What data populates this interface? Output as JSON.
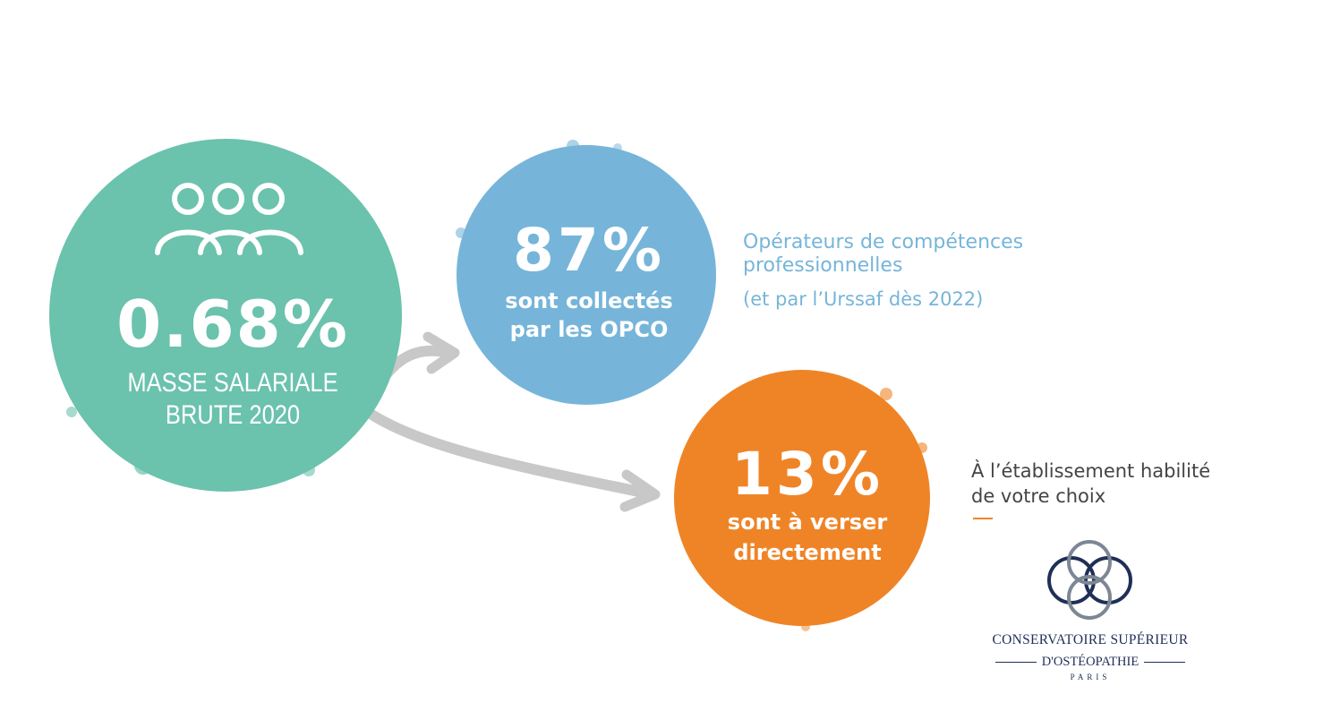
{
  "colors": {
    "green": "#6bc2ad",
    "blue": "#76b5d9",
    "orange": "#ef8427",
    "arrow": "#c8c8c8",
    "logo_navy": "#1f2f57",
    "logo_grey": "#7d8794"
  },
  "total": {
    "icon": "people-group-icon",
    "percent": "0.68%",
    "label_line1": "MASSE SALARIALE",
    "label_line2": "BRUTE 2020"
  },
  "opco": {
    "percent": "87%",
    "label_line1": "sont collectés",
    "label_line2": "par les OPCO",
    "description_line1": "Opérateurs de compétences",
    "description_line2": "professionnelles",
    "note": "(et par l’Urssaf dès 2022)"
  },
  "direct": {
    "percent": "13%",
    "label_line1": "sont à verser",
    "label_line2": "directement",
    "description_line1": "À l’établissement habilité",
    "description_line2": "de votre choix"
  },
  "logo": {
    "name_line1": "CONSERVATOIRE SUPÉRIEUR",
    "name_line2": "D'OSTÉOPATHIE",
    "city": "PARIS"
  }
}
